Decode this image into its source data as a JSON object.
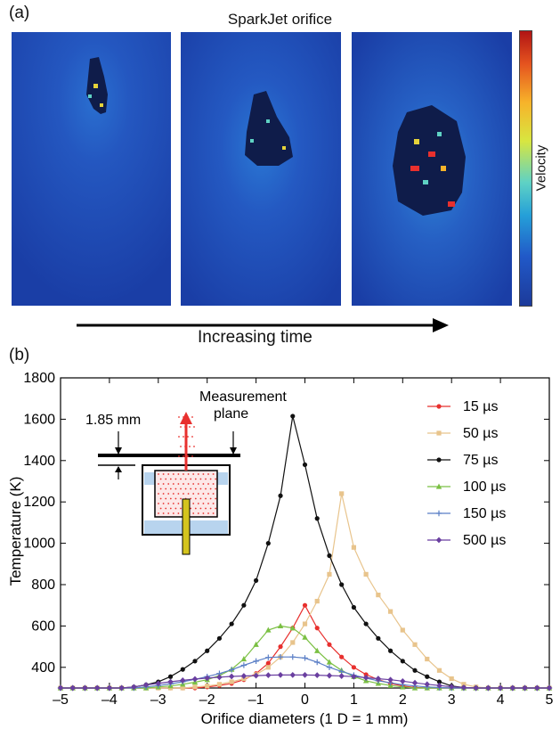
{
  "panel_a_label": "(a)",
  "panel_b_label": "(b)",
  "top_title": "SparkJet orifice",
  "colorbar_label": "Velocity",
  "time_label": "Increasing time",
  "inset": {
    "dimension": "1.85 mm",
    "measurement_line1": "Measurement",
    "measurement_line2": "plane"
  },
  "colors": {
    "s15": "#e8302e",
    "s50": "#e8c48c",
    "s75": "#111111",
    "s100": "#7bc043",
    "s150": "#5b7fc6",
    "s500": "#6a3fa0"
  },
  "chart_data": {
    "type": "line",
    "xlabel": "Orifice diameters (1 D = 1 mm)",
    "ylabel": "Temperature (K)",
    "xlim": [
      -5,
      5
    ],
    "ylim": [
      300,
      1800
    ],
    "xticks": [
      -5,
      -4,
      -3,
      -2,
      -1,
      0,
      1,
      2,
      3,
      4,
      5
    ],
    "yticks": [
      400,
      600,
      800,
      1000,
      1200,
      1400,
      1600,
      1800
    ],
    "legend": "top-right",
    "series": [
      {
        "name": "15 µs",
        "color_key": "s15",
        "marker": "dot",
        "x": [
          -5,
          -4.75,
          -4.5,
          -4.25,
          -4,
          -3.75,
          -3.5,
          -3.25,
          -3,
          -2.75,
          -2.5,
          -2.25,
          -2,
          -1.75,
          -1.5,
          -1.25,
          -1,
          -0.75,
          -0.5,
          -0.25,
          0,
          0.25,
          0.5,
          0.75,
          1,
          1.25,
          1.5,
          1.75,
          2,
          2.25,
          2.5,
          2.75,
          3,
          3.25,
          3.5,
          3.75,
          4,
          4.25,
          4.5,
          4.75,
          5
        ],
        "y": [
          300,
          300,
          300,
          300,
          300,
          300,
          300,
          300,
          300,
          300,
          300,
          300,
          305,
          312,
          322,
          340,
          370,
          420,
          500,
          590,
          700,
          590,
          510,
          450,
          400,
          365,
          340,
          322,
          310,
          302,
          300,
          300,
          300,
          300,
          300,
          300,
          300,
          300,
          300,
          300,
          300
        ]
      },
      {
        "name": "50 µs",
        "color_key": "s50",
        "marker": "square",
        "x": [
          -5,
          -4.75,
          -4.5,
          -4.25,
          -4,
          -3.75,
          -3.5,
          -3.25,
          -3,
          -2.75,
          -2.5,
          -2.25,
          -2,
          -1.75,
          -1.5,
          -1.25,
          -1,
          -0.75,
          -0.5,
          -0.25,
          0,
          0.25,
          0.5,
          0.75,
          1,
          1.25,
          1.5,
          1.75,
          2,
          2.25,
          2.5,
          2.75,
          3,
          3.25,
          3.5,
          3.75,
          4,
          4.25,
          4.5,
          4.75,
          5
        ],
        "y": [
          300,
          300,
          300,
          300,
          300,
          300,
          300,
          300,
          300,
          300,
          300,
          305,
          310,
          318,
          330,
          345,
          365,
          400,
          450,
          520,
          610,
          720,
          850,
          1240,
          980,
          850,
          750,
          670,
          580,
          510,
          440,
          385,
          345,
          318,
          305,
          300,
          300,
          300,
          300,
          300,
          300
        ]
      },
      {
        "name": "75 µs",
        "color_key": "s75",
        "marker": "dot",
        "x": [
          -5,
          -4.75,
          -4.5,
          -4.25,
          -4,
          -3.75,
          -3.5,
          -3.25,
          -3,
          -2.75,
          -2.5,
          -2.25,
          -2,
          -1.75,
          -1.5,
          -1.25,
          -1,
          -0.75,
          -0.5,
          -0.25,
          0,
          0.25,
          0.5,
          0.75,
          1,
          1.25,
          1.5,
          1.75,
          2,
          2.25,
          2.5,
          2.75,
          3,
          3.25,
          3.5,
          3.75,
          4,
          4.25,
          4.5,
          4.75,
          5
        ],
        "y": [
          300,
          300,
          300,
          300,
          300,
          300,
          305,
          315,
          330,
          355,
          390,
          430,
          480,
          540,
          610,
          700,
          820,
          1000,
          1230,
          1615,
          1380,
          1120,
          940,
          800,
          690,
          610,
          540,
          480,
          430,
          385,
          355,
          330,
          310,
          302,
          300,
          300,
          300,
          300,
          300,
          300,
          300
        ]
      },
      {
        "name": "100 µs",
        "color_key": "s100",
        "marker": "triangle",
        "x": [
          -5,
          -4.75,
          -4.5,
          -4.25,
          -4,
          -3.75,
          -3.5,
          -3.25,
          -3,
          -2.75,
          -2.5,
          -2.25,
          -2,
          -1.75,
          -1.5,
          -1.25,
          -1,
          -0.75,
          -0.5,
          -0.25,
          0,
          0.25,
          0.5,
          0.75,
          1,
          1.25,
          1.5,
          1.75,
          2,
          2.25,
          2.5,
          2.75,
          3,
          3.25,
          3.5,
          3.75,
          4,
          4.25,
          4.5,
          4.75,
          5
        ],
        "y": [
          300,
          300,
          300,
          300,
          300,
          300,
          300,
          300,
          305,
          310,
          318,
          328,
          340,
          360,
          390,
          440,
          510,
          580,
          600,
          590,
          545,
          480,
          425,
          385,
          355,
          335,
          322,
          312,
          305,
          300,
          300,
          300,
          300,
          300,
          300,
          300,
          300,
          300,
          300,
          300,
          300
        ]
      },
      {
        "name": "150 µs",
        "color_key": "s150",
        "marker": "plus",
        "x": [
          -5,
          -4.75,
          -4.5,
          -4.25,
          -4,
          -3.75,
          -3.5,
          -3.25,
          -3,
          -2.75,
          -2.5,
          -2.25,
          -2,
          -1.75,
          -1.5,
          -1.25,
          -1,
          -0.75,
          -0.5,
          -0.25,
          0,
          0.25,
          0.5,
          0.75,
          1,
          1.25,
          1.5,
          1.75,
          2,
          2.25,
          2.5,
          2.75,
          3,
          3.25,
          3.5,
          3.75,
          4,
          4.25,
          4.5,
          4.75,
          5
        ],
        "y": [
          300,
          300,
          300,
          300,
          300,
          300,
          300,
          305,
          312,
          320,
          330,
          342,
          355,
          370,
          388,
          410,
          430,
          448,
          450,
          450,
          445,
          425,
          400,
          380,
          362,
          348,
          335,
          325,
          316,
          310,
          305,
          302,
          300,
          300,
          300,
          300,
          300,
          300,
          300,
          300,
          300
        ]
      },
      {
        "name": "500 µs",
        "color_key": "s500",
        "marker": "diamond",
        "x": [
          -5,
          -4.75,
          -4.5,
          -4.25,
          -4,
          -3.75,
          -3.5,
          -3.25,
          -3,
          -2.75,
          -2.5,
          -2.25,
          -2,
          -1.75,
          -1.5,
          -1.25,
          -1,
          -0.75,
          -0.5,
          -0.25,
          0,
          0.25,
          0.5,
          0.75,
          1,
          1.25,
          1.5,
          1.75,
          2,
          2.25,
          2.5,
          2.75,
          3,
          3.25,
          3.5,
          3.75,
          4,
          4.25,
          4.5,
          4.75,
          5
        ],
        "y": [
          300,
          300,
          300,
          300,
          300,
          300,
          305,
          315,
          322,
          330,
          337,
          343,
          348,
          352,
          356,
          358,
          360,
          362,
          363,
          363,
          363,
          362,
          360,
          358,
          355,
          350,
          345,
          340,
          333,
          325,
          318,
          312,
          306,
          302,
          300,
          300,
          300,
          300,
          300,
          300,
          300
        ]
      }
    ]
  }
}
